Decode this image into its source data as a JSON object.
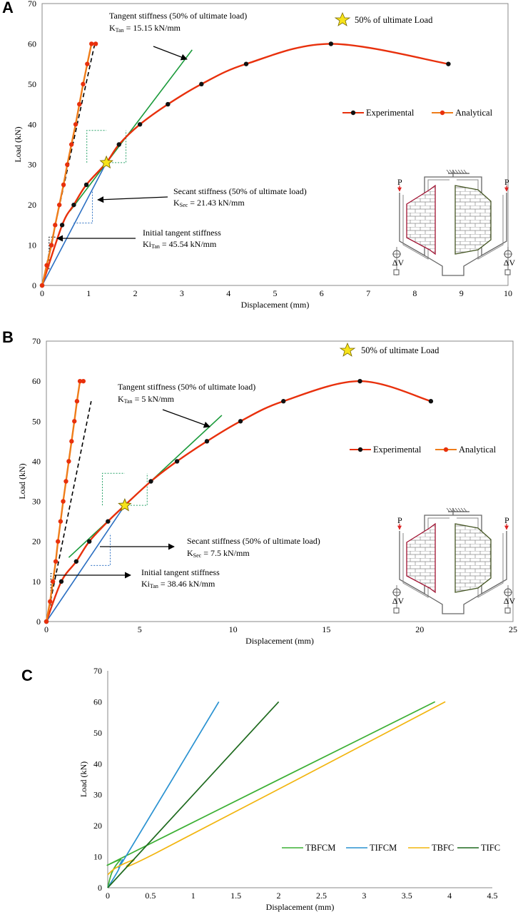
{
  "chart_data": [
    {
      "panel": "A",
      "type": "line",
      "xlabel": "Displacement (mm)",
      "ylabel": "Load (kN)",
      "xlim": [
        0,
        10
      ],
      "ylim": [
        0,
        70
      ],
      "xticks": [
        0,
        1,
        2,
        3,
        4,
        5,
        6,
        7,
        8,
        9,
        10
      ],
      "yticks": [
        0,
        10,
        20,
        30,
        40,
        50,
        60,
        70
      ],
      "star_label": "50% of ultimate Load",
      "star_point": [
        1.38,
        30.5
      ],
      "series": [
        {
          "name": "Experimental",
          "color": "#e8300c",
          "marker_color": "#111111",
          "x": [
            0,
            0.43,
            0.68,
            0.95,
            1.38,
            1.65,
            2.1,
            2.7,
            3.42,
            4.38,
            6.2,
            8.72
          ],
          "y": [
            0,
            15,
            20,
            25,
            30.5,
            35,
            40,
            45,
            50,
            55,
            60,
            55
          ]
        },
        {
          "name": "Analytical",
          "color": "#ef7d1a",
          "marker_color": "#e8300c",
          "x": [
            0,
            0.1,
            0.2,
            0.28,
            0.37,
            0.46,
            0.54,
            0.63,
            0.72,
            0.8,
            0.88,
            0.97,
            1.06,
            1.15
          ],
          "y": [
            0,
            5,
            10,
            15,
            20,
            25,
            30,
            35,
            40,
            45,
            50,
            55,
            60,
            60
          ]
        }
      ],
      "ref_lines": [
        {
          "name": "initial-tangent",
          "color": "#000000",
          "dash": true,
          "x": [
            0,
            1.13
          ],
          "y": [
            0,
            60
          ]
        },
        {
          "name": "tangent",
          "color": "#1a9a3a",
          "dash": false,
          "x": [
            0.6,
            3.22
          ],
          "y": [
            18.5,
            58.5
          ]
        },
        {
          "name": "secant",
          "color": "#2b6fc2",
          "dash": false,
          "x": [
            0,
            1.38
          ],
          "y": [
            0,
            30.5
          ]
        }
      ],
      "annotations": {
        "tangent_title": "Tangent stiffness (50% of ultimate load)",
        "tangent_k": "K",
        "tangent_sub": "Tan",
        "tangent_val": " = 15.15 kN/mm",
        "secant_title": "Secant stiffness (50% of ultimate load)",
        "secant_k": "K",
        "secant_sub": "Sec",
        "secant_val": " = 21.43 kN/mm",
        "initial_title": "Initial tangent stiffness",
        "initial_k": "Ki",
        "initial_sub": "Tan",
        "initial_val": " = 45.54 kN/mm"
      }
    },
    {
      "panel": "B",
      "type": "line",
      "xlabel": "Displacement (mm)",
      "ylabel": "Load (kN)",
      "xlim": [
        0,
        25
      ],
      "ylim": [
        0,
        70
      ],
      "xticks": [
        0,
        5,
        10,
        15,
        20,
        25
      ],
      "yticks": [
        0,
        10,
        20,
        30,
        40,
        50,
        60,
        70
      ],
      "star_label": "50% of ultimate Load",
      "star_point": [
        4.2,
        29
      ],
      "series": [
        {
          "name": "Experimental",
          "color": "#e8300c",
          "marker_color": "#111111",
          "x": [
            0,
            0.8,
            1.6,
            2.3,
            3.3,
            4.2,
            5.6,
            7.0,
            8.6,
            10.4,
            12.7,
            16.8,
            20.6
          ],
          "y": [
            0,
            10,
            15,
            20,
            25,
            29,
            35,
            40,
            45,
            50,
            55,
            60,
            55
          ]
        },
        {
          "name": "Analytical",
          "color": "#ef7d1a",
          "marker_color": "#e8300c",
          "x": [
            0,
            0.2,
            0.35,
            0.5,
            0.62,
            0.76,
            0.9,
            1.05,
            1.2,
            1.35,
            1.5,
            1.64,
            1.8,
            1.98
          ],
          "y": [
            0,
            5,
            10,
            15,
            20,
            25,
            30,
            35,
            40,
            45,
            50,
            55,
            60,
            60
          ]
        }
      ],
      "ref_lines": [
        {
          "name": "initial-tangent",
          "color": "#000000",
          "dash": true,
          "x": [
            0,
            2.4
          ],
          "y": [
            0,
            55
          ]
        },
        {
          "name": "tangent",
          "color": "#1a9a3a",
          "dash": false,
          "x": [
            1.2,
            9.4
          ],
          "y": [
            16,
            51.5
          ]
        },
        {
          "name": "secant",
          "color": "#2b6fc2",
          "dash": false,
          "x": [
            0,
            4.2
          ],
          "y": [
            0,
            29
          ]
        }
      ],
      "annotations": {
        "tangent_title": "Tangent stiffness (50% of ultimate load)",
        "tangent_k": "K",
        "tangent_sub": "Tan",
        "tangent_val": " = 5 kN/mm",
        "secant_title": "Secant stiffness (50% of ultimate load)",
        "secant_k": "K",
        "secant_sub": "Sec",
        "secant_val": " = 7.5 kN/mm",
        "initial_title": "Initial tangent stiffness",
        "initial_k": "Ki",
        "initial_sub": "Tan",
        "initial_val": " = 38.46 kN/mm"
      }
    },
    {
      "panel": "C",
      "type": "line",
      "xlabel": "Displacement (mm)",
      "ylabel": "Load (kN)",
      "xlim": [
        0,
        4.5
      ],
      "ylim": [
        0,
        70
      ],
      "xticks": [
        "0",
        "0.5",
        "1",
        "1.5",
        "2",
        "2.5",
        "3",
        "3.5",
        "4",
        "4.5"
      ],
      "yticks": [
        0,
        10,
        20,
        30,
        40,
        50,
        60,
        70
      ],
      "series": [
        {
          "name": "TBFCM",
          "color": "#3cb034",
          "x": [
            0,
            0.05,
            0.15,
            0.3,
            3.83
          ],
          "y": [
            0,
            5,
            9,
            11.5,
            60
          ]
        },
        {
          "name": "TIFCM",
          "color": "#2a92d1",
          "x": [
            0,
            0.12,
            0.17,
            0.22,
            1.3
          ],
          "y": [
            0,
            5.5,
            9,
            10.5,
            60
          ]
        },
        {
          "name": "TBFC",
          "color": "#f2b50f",
          "x": [
            0,
            0.1,
            0.3,
            0.55,
            3.95
          ],
          "y": [
            4.2,
            6.5,
            9,
            11,
            60
          ]
        },
        {
          "name": "TIFC",
          "color": "#1e6a1e",
          "x": [
            0,
            2.0
          ],
          "y": [
            0,
            60
          ]
        }
      ]
    }
  ],
  "diagram": {
    "load_label": "P",
    "disp_label": "ΔV"
  }
}
